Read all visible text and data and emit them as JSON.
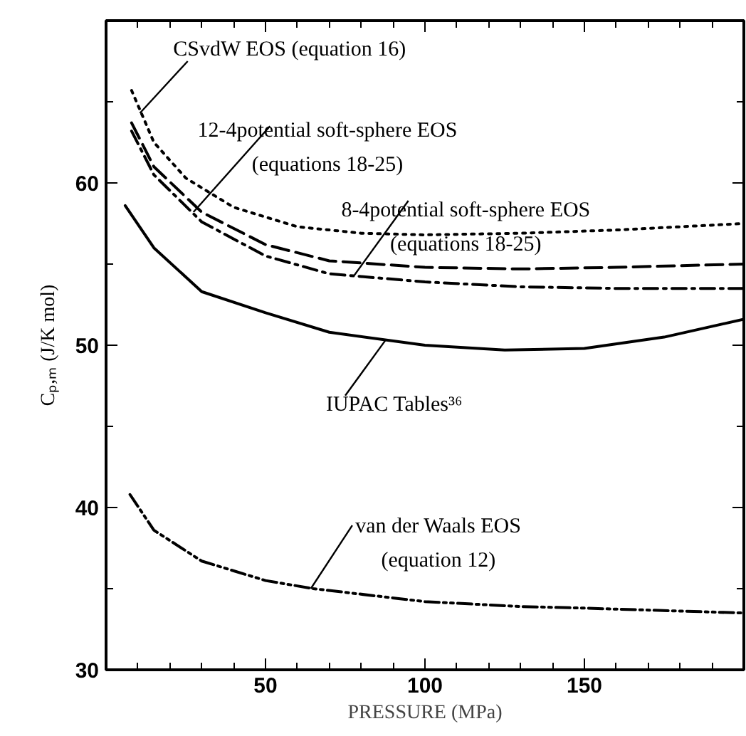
{
  "chart_data": {
    "type": "line",
    "xlabel": "PRESSURE (MPa)",
    "ylabel": "Cₚ,ₘ (J/K mol)",
    "xlim": [
      0,
      200
    ],
    "ylim": [
      30,
      70
    ],
    "xticks": [
      {
        "value": 10,
        "label": null
      },
      {
        "value": 20,
        "label": null
      },
      {
        "value": 30,
        "label": null
      },
      {
        "value": 40,
        "label": null
      },
      50,
      {
        "value": 60,
        "label": null
      },
      {
        "value": 70,
        "label": null
      },
      {
        "value": 80,
        "label": null
      },
      {
        "value": 90,
        "label": null
      },
      100,
      {
        "value": 110,
        "label": null
      },
      {
        "value": 120,
        "label": null
      },
      {
        "value": 130,
        "label": null
      },
      {
        "value": 140,
        "label": null
      },
      150,
      {
        "value": 160,
        "label": null
      },
      {
        "value": 170,
        "label": null
      },
      {
        "value": 180,
        "label": null
      },
      {
        "value": 190,
        "label": null
      }
    ],
    "yticks": [
      30,
      {
        "value": 35,
        "label": null
      },
      40,
      {
        "value": 45,
        "label": null
      },
      50,
      {
        "value": 55,
        "label": null
      },
      60,
      {
        "value": 65,
        "label": null
      }
    ],
    "grid": false,
    "series": [
      {
        "color": "#000000",
        "line_style": "dotted",
        "x": [
          8,
          15,
          25,
          40,
          60,
          80,
          100,
          130,
          160,
          200
        ],
        "values": [
          65.7,
          62.5,
          60.3,
          58.5,
          57.3,
          56.9,
          56.8,
          56.9,
          57.1,
          57.5
        ]
      },
      {
        "color": "#000000",
        "line_style": "dashed",
        "x": [
          8,
          15,
          30,
          50,
          70,
          100,
          130,
          160,
          200
        ],
        "values": [
          63.7,
          61.0,
          58.2,
          56.2,
          55.2,
          54.8,
          54.7,
          54.8,
          55.0
        ]
      },
      {
        "color": "#000000",
        "line_style": "dashdot",
        "x": [
          8,
          15,
          30,
          50,
          70,
          100,
          130,
          160,
          200
        ],
        "values": [
          63.2,
          60.5,
          57.6,
          55.5,
          54.4,
          53.9,
          53.6,
          53.5,
          53.5
        ]
      },
      {
        "color": "#000000",
        "line_style": "solid",
        "x": [
          6,
          15,
          30,
          50,
          70,
          100,
          125,
          150,
          175,
          200
        ],
        "values": [
          58.6,
          56.0,
          53.3,
          52.0,
          50.8,
          50.0,
          49.7,
          49.8,
          50.5,
          51.6
        ]
      },
      {
        "color": "#000000",
        "line_style": "dashdotdot",
        "x": [
          7.5,
          15,
          30,
          50,
          65,
          100,
          130,
          150,
          200
        ],
        "values": [
          40.8,
          38.6,
          36.7,
          35.5,
          35.0,
          34.2,
          33.9,
          33.8,
          33.5
        ]
      }
    ],
    "annotations": [
      {
        "text": "CSvdW EOS (equation 16)",
        "x": 10.6,
        "y": 64.3
      },
      {
        "text": "12-4potential soft-sphere EOS\n(equations 18-25)",
        "x": 27.4,
        "y": 58.2
      },
      {
        "text": "8-4potential soft-sphere EOS\n(equations 18-25)",
        "x": 77.8,
        "y": 54.3
      },
      {
        "text": "IUPAC Tables³⁶",
        "x": 87.6,
        "y": 50.3
      },
      {
        "text": "van der Waals EOS\n(equation 12)",
        "x": 64.2,
        "y": 35.0
      }
    ]
  }
}
